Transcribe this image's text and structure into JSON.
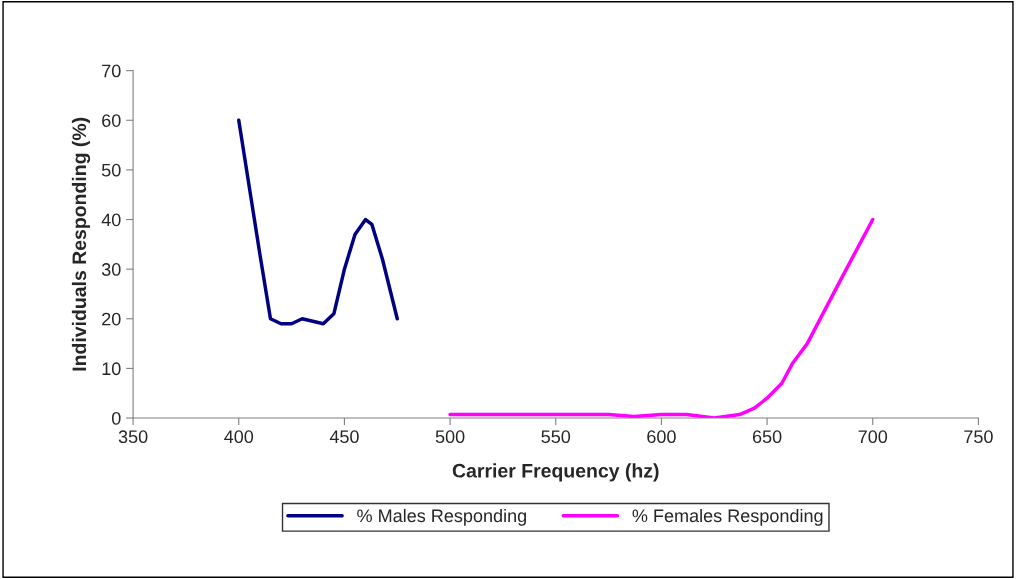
{
  "chart_data": {
    "type": "line",
    "xlabel": "Carrier Frequency (hz)",
    "ylabel": "Individuals Responding (%)",
    "xlim": [
      350,
      750
    ],
    "xticks": [
      350,
      400,
      450,
      500,
      550,
      600,
      650,
      700,
      750
    ],
    "ylim": [
      0,
      70
    ],
    "yticks": [
      0,
      10,
      20,
      30,
      40,
      50,
      60,
      70
    ],
    "grid": false,
    "legend": "bottom",
    "marker": "none",
    "line_style": "solid",
    "series": [
      {
        "name": "% Males Responding",
        "color": "#000080",
        "x": [
          400,
          410,
          415,
          420,
          425,
          430,
          435,
          440,
          445,
          450,
          455,
          460,
          463,
          468,
          475
        ],
        "values": [
          60,
          33,
          20,
          19,
          19,
          20,
          19.5,
          19,
          21,
          30,
          37,
          40,
          39,
          32,
          20
        ]
      },
      {
        "name": "% Females Responding",
        "color": "#ff00ff",
        "x": [
          500,
          525,
          550,
          575,
          587,
          600,
          612,
          625,
          637,
          644,
          650,
          657,
          662,
          669,
          685,
          700
        ],
        "values": [
          0.7,
          0.7,
          0.7,
          0.7,
          0.3,
          0.7,
          0.7,
          0,
          0.7,
          2,
          4,
          7,
          11,
          15,
          28,
          40
        ]
      }
    ]
  }
}
